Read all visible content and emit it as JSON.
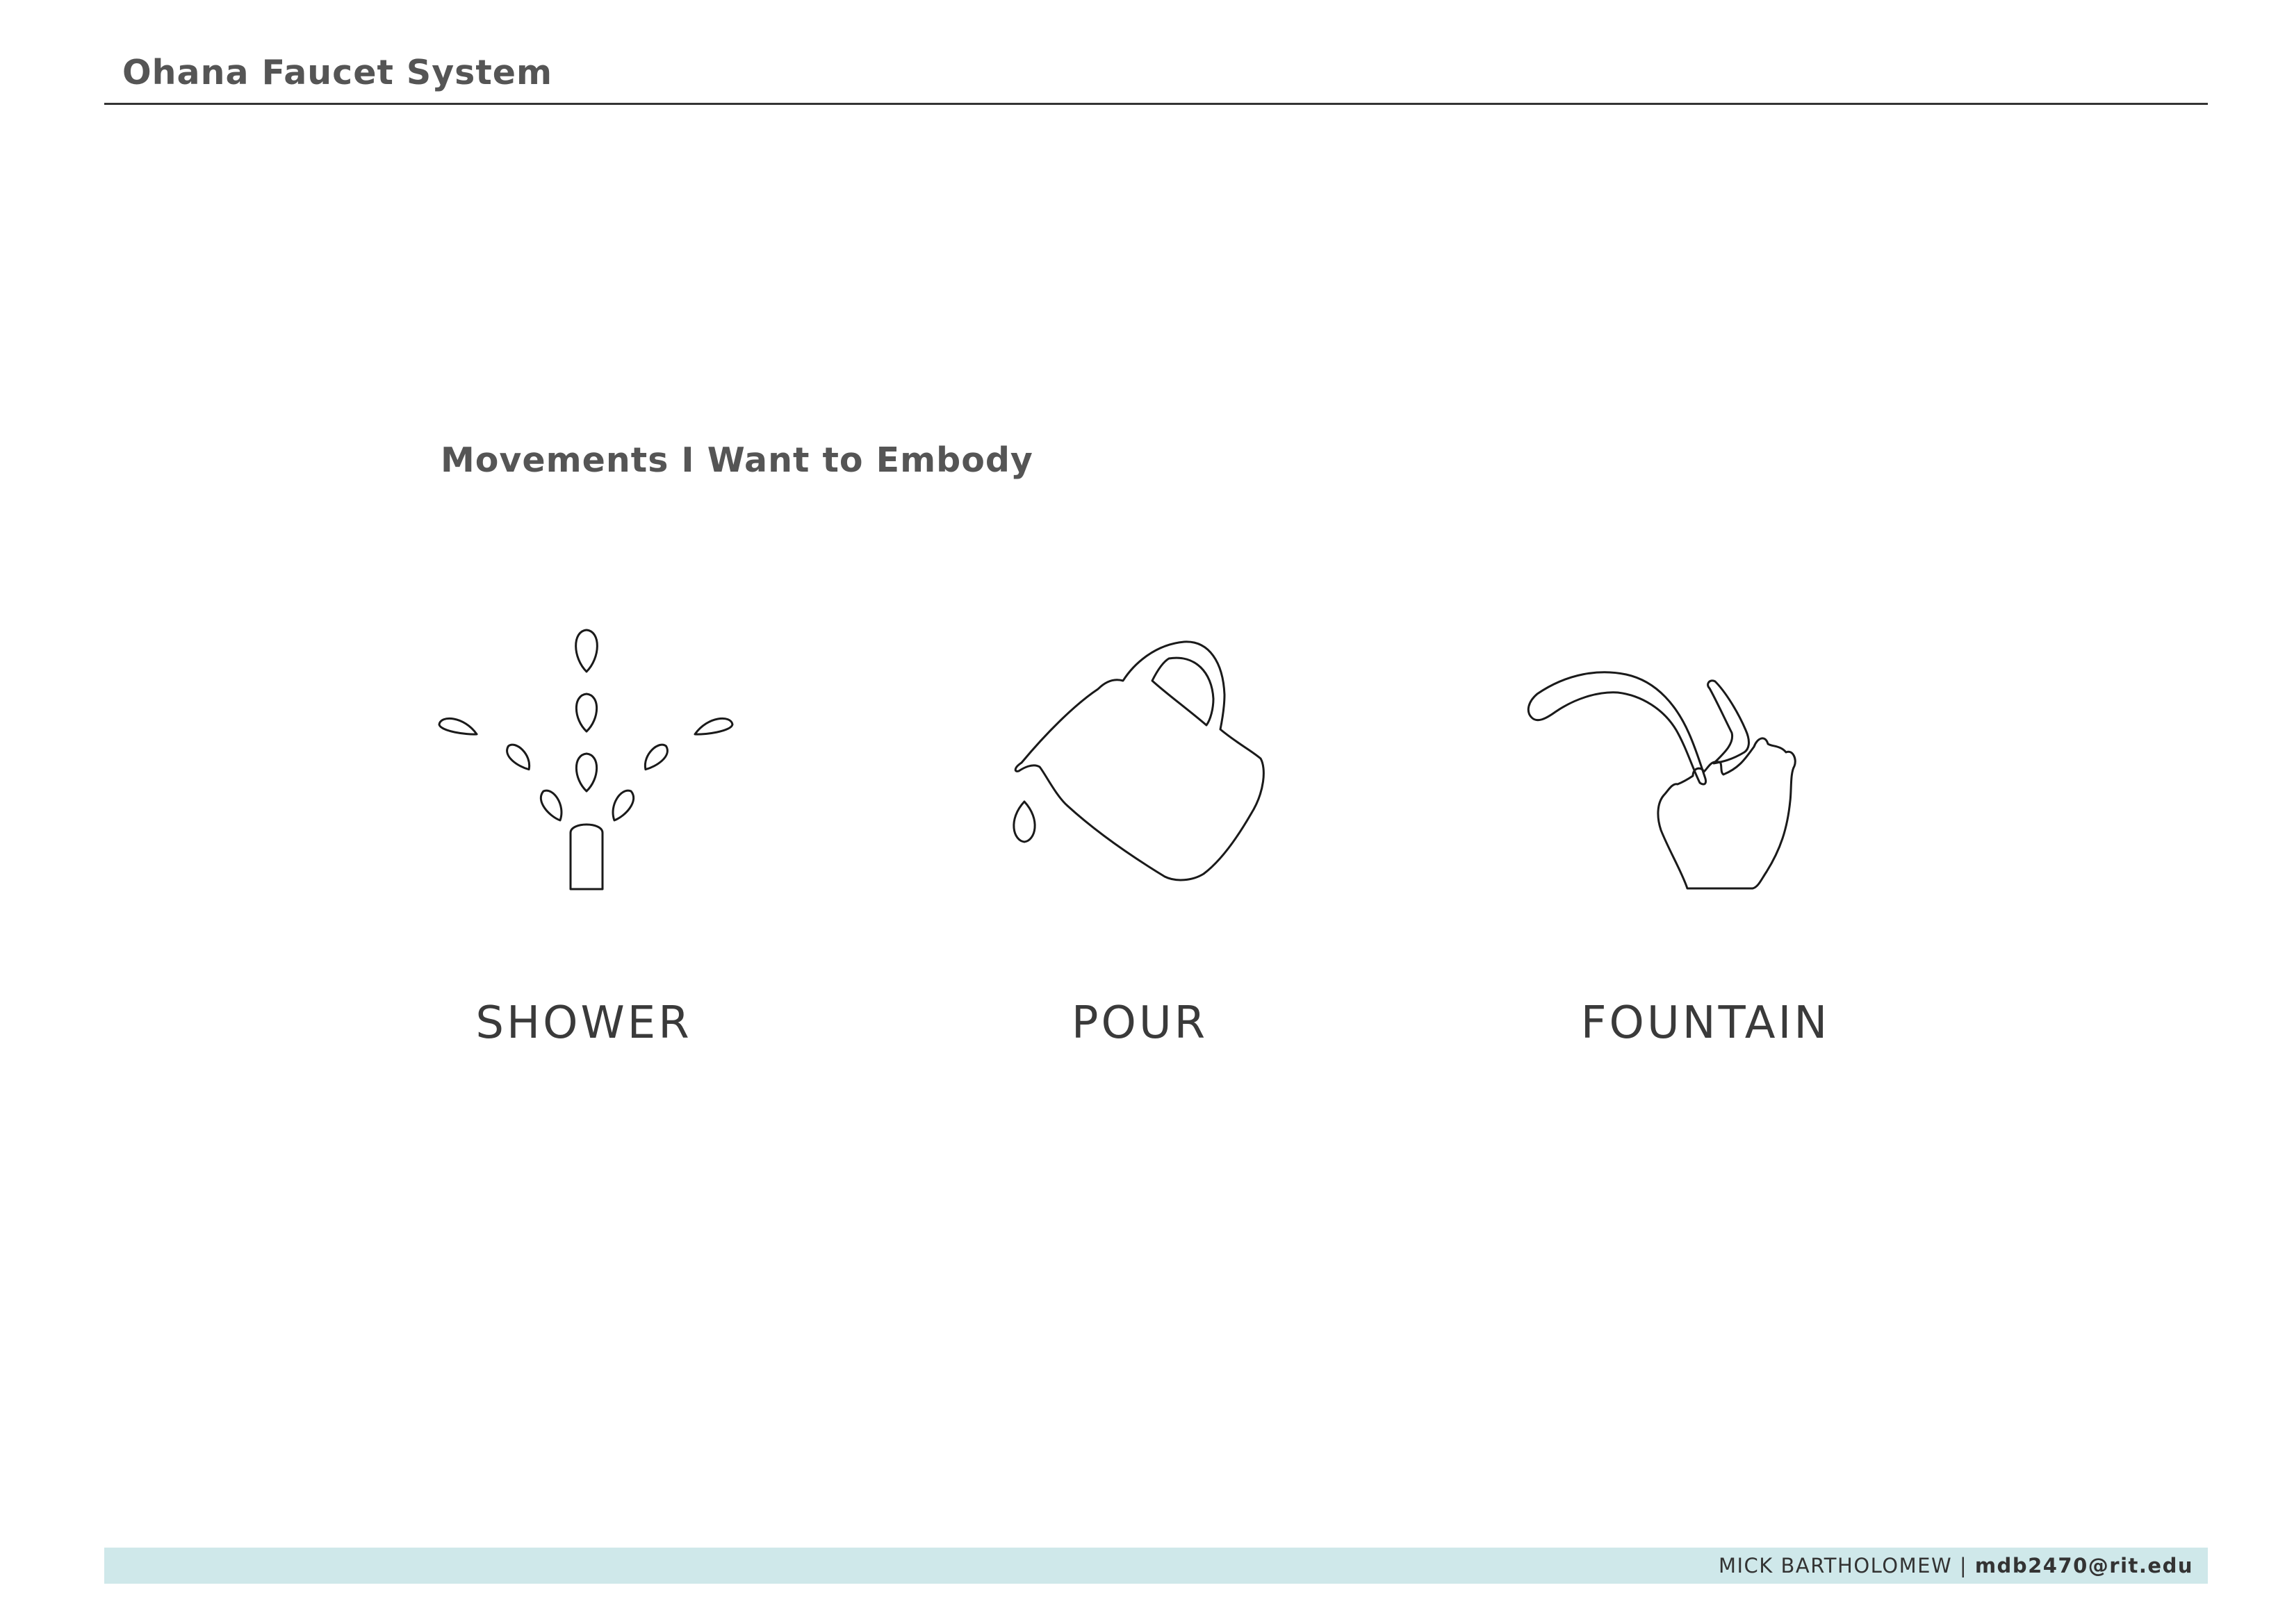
{
  "header": {
    "title": "Ohana Faucet System"
  },
  "section": {
    "heading": "Movements I Want to Embody"
  },
  "movements": [
    {
      "label": "SHOWER",
      "icon": "shower-icon"
    },
    {
      "label": "POUR",
      "icon": "pitcher-pour-icon"
    },
    {
      "label": "FOUNTAIN",
      "icon": "fountain-icon"
    }
  ],
  "footer": {
    "name": "MICK BARTHOLOMEW",
    "separator": "|",
    "email": "mdb2470@rit.edu",
    "bar_color": "#cfe8ea"
  }
}
